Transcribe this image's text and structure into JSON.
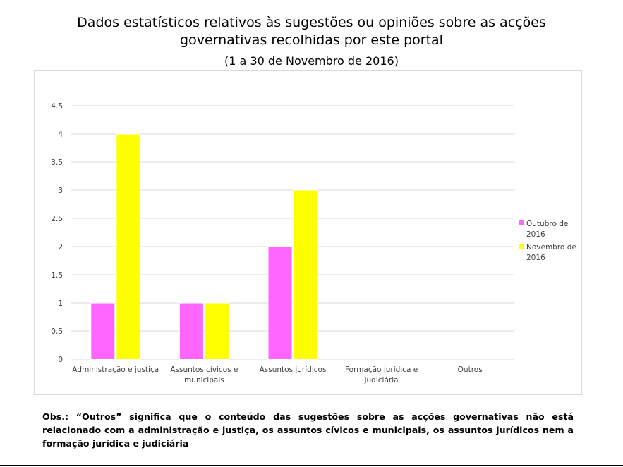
{
  "title_line1": "Dados estatísticos relativos às sugestões ou opiniões sobre as acções",
  "title_line2": "governativas recolhidas por este portal",
  "subtitle": "(1 a 30 de Novembro de 2016)",
  "note": "Obs.: “Outros” significa que o conteúdo das sugestões sobre as acções governativas não está relacionado com a administração e justiça, os assuntos cívicos e municipais, os assuntos jurídicos nem a formação jurídica e judiciária",
  "chart_data": {
    "type": "bar",
    "categories": [
      [
        "Administração e justiça"
      ],
      [
        "Assuntos cívicos e",
        "municipais"
      ],
      [
        "Assuntos jurídicos"
      ],
      [
        "Formação jurídica e",
        "judiciária"
      ],
      [
        "Outros"
      ]
    ],
    "series": [
      {
        "name_lines": [
          "Outubro de",
          "2016"
        ],
        "color": "#ff66ff",
        "values": [
          1,
          1,
          2,
          0,
          0
        ]
      },
      {
        "name_lines": [
          "Novembro de",
          "2016"
        ],
        "color": "#ffff00",
        "values": [
          4,
          1,
          3,
          0,
          0
        ]
      }
    ],
    "yticks": [
      "0",
      "0.5",
      "1",
      "1.5",
      "2",
      "2.5",
      "3",
      "3.5",
      "4",
      "4.5"
    ],
    "ylim": [
      0,
      4.5
    ],
    "grid": true,
    "legend_position": "right"
  }
}
